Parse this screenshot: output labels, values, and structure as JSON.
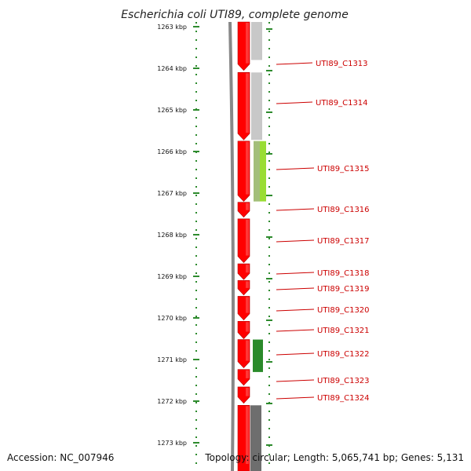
{
  "title": "Escherichia coli UTI89, complete genome",
  "footer": {
    "accession": "Accession: NC_007946",
    "topology": "Topology: circular; Length: 5,065,741 bp; Genes: 5,131"
  },
  "colors": {
    "gene_fill": "#ff0000",
    "gene_edge": "#b30000",
    "tick": "#2e8b2e",
    "label": "#cc0000",
    "backbone": "#888888",
    "gray_light": "#c8c8c8",
    "gray_dark": "#6e6e6e",
    "lime": "#99dd33",
    "green": "#2a8a2a"
  },
  "axis": {
    "unit": "kbp",
    "ticks": [
      {
        "kbp": 1263,
        "label": "1263 kbp"
      },
      {
        "kbp": 1264,
        "label": "1264 kbp"
      },
      {
        "kbp": 1265,
        "label": "1265 kbp"
      },
      {
        "kbp": 1266,
        "label": "1266 kbp"
      },
      {
        "kbp": 1267,
        "label": "1267 kbp"
      },
      {
        "kbp": 1268,
        "label": "1268 kbp"
      },
      {
        "kbp": 1269,
        "label": "1269 kbp"
      },
      {
        "kbp": 1270,
        "label": "1270 kbp"
      },
      {
        "kbp": 1271,
        "label": "1271 kbp"
      },
      {
        "kbp": 1272,
        "label": "1272 kbp"
      },
      {
        "kbp": 1273,
        "label": "1273 kbp"
      }
    ]
  },
  "genes": [
    {
      "id": "UTI89_C1313",
      "start": 1262.6,
      "end": 1264.05,
      "strand": "-"
    },
    {
      "id": "UTI89_C1314",
      "start": 1264.1,
      "end": 1265.72,
      "strand": "-"
    },
    {
      "id": "UTI89_C1315",
      "start": 1265.75,
      "end": 1267.2,
      "strand": "-"
    },
    {
      "id": "UTI89_C1316",
      "start": 1267.22,
      "end": 1267.58,
      "strand": "-"
    },
    {
      "id": "UTI89_C1317",
      "start": 1267.62,
      "end": 1268.67,
      "strand": "-"
    },
    {
      "id": "UTI89_C1318",
      "start": 1268.7,
      "end": 1269.08,
      "strand": "-"
    },
    {
      "id": "UTI89_C1319",
      "start": 1269.1,
      "end": 1269.45,
      "strand": "-"
    },
    {
      "id": "UTI89_C1320",
      "start": 1269.48,
      "end": 1270.05,
      "strand": "-"
    },
    {
      "id": "UTI89_C1321",
      "start": 1270.08,
      "end": 1270.5,
      "strand": "-"
    },
    {
      "id": "UTI89_C1322",
      "start": 1270.52,
      "end": 1271.2,
      "strand": "-"
    },
    {
      "id": "UTI89_C1323",
      "start": 1271.24,
      "end": 1271.62,
      "strand": "-"
    },
    {
      "id": "UTI89_C1324",
      "start": 1271.66,
      "end": 1272.05,
      "strand": "-"
    },
    {
      "id": "",
      "start": 1272.1,
      "end": 1273.8,
      "strand": "-"
    }
  ],
  "features": [
    {
      "track": "gray_light",
      "start": 1262.6,
      "end": 1263.8
    },
    {
      "track": "gray_light",
      "start": 1264.1,
      "end": 1265.72
    },
    {
      "track": "lime",
      "start": 1265.75,
      "end": 1267.2
    },
    {
      "track": "green",
      "start": 1270.52,
      "end": 1271.3
    },
    {
      "track": "gray_dark",
      "start": 1272.1,
      "end": 1273.8
    }
  ]
}
